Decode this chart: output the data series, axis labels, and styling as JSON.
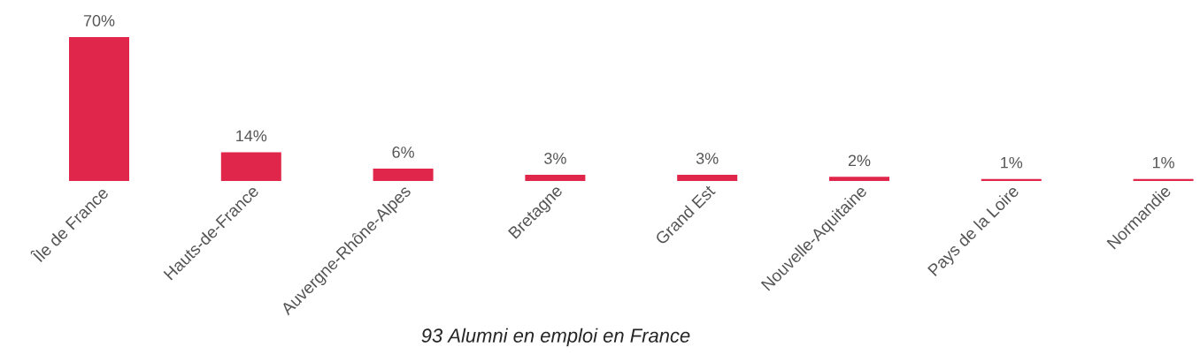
{
  "chart_data": {
    "type": "bar",
    "xlabel": "93 Alumni en emploi en France",
    "categories": [
      "Île de France",
      "Hauts-de-France",
      "Auvergne-Rhône-Alpes",
      "Bretagne",
      "Grand Est",
      "Nouvelle-Aquitaine",
      "Pays de la Loire",
      "Normandie"
    ],
    "values": [
      70,
      14,
      6,
      3,
      3,
      2,
      1,
      1
    ],
    "value_labels": [
      "70%",
      "14%",
      "6%",
      "3%",
      "3%",
      "2%",
      "1%",
      "1%"
    ],
    "color": "#e0264a"
  }
}
